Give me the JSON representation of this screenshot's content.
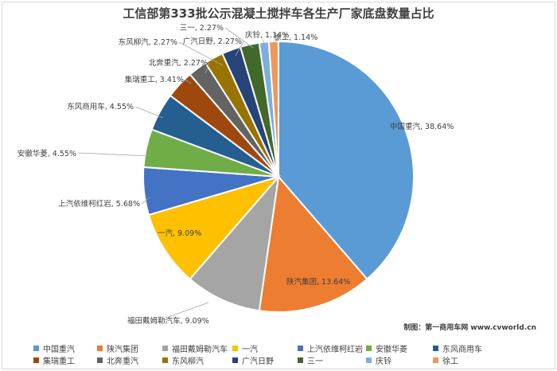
{
  "chart_data": {
    "type": "pie",
    "title": "工信部第333批公示混凝土搅拌车各生产厂家底盘数量占比",
    "slices": [
      {
        "label": "中国重汽",
        "value": 38.64,
        "display": "38.64%",
        "color": "#5b9bd5"
      },
      {
        "label": "陕汽集团",
        "value": 13.64,
        "display": "13.64%",
        "color": "#ed7d31"
      },
      {
        "label": "福田戴姆勒汽车",
        "value": 9.09,
        "display": "9.09%",
        "color": "#a5a5a5"
      },
      {
        "label": "一汽",
        "value": 9.09,
        "display": "9.09%",
        "color": "#ffc000"
      },
      {
        "label": "上汽依维柯红岩",
        "value": 5.68,
        "display": "5.68%",
        "color": "#4472c4"
      },
      {
        "label": "安徽华菱",
        "value": 4.55,
        "display": "4.55%",
        "color": "#70ad47"
      },
      {
        "label": "东风商用车",
        "value": 4.55,
        "display": "4.55%",
        "color": "#255e91"
      },
      {
        "label": "集瑞重工",
        "value": 3.41,
        "display": "3.41%",
        "color": "#9e480e"
      },
      {
        "label": "北奔重汽",
        "value": 2.27,
        "display": "2.27%",
        "color": "#636363"
      },
      {
        "label": "东风柳汽",
        "value": 2.27,
        "display": "2.27%",
        "color": "#997300"
      },
      {
        "label": "广汽日野",
        "value": 2.27,
        "display": "2.27%",
        "color": "#264478"
      },
      {
        "label": "三一",
        "value": 2.27,
        "display": "2.27%",
        "color": "#43682b"
      },
      {
        "label": "庆铃",
        "value": 1.14,
        "display": "1.14%",
        "color": "#7cafdd"
      },
      {
        "label": "徐工",
        "value": 1.14,
        "display": "1.14%",
        "color": "#f1975a"
      }
    ],
    "legend_position": "bottom"
  },
  "credit": "制图：第一商用车网 www.cvworld.cn"
}
